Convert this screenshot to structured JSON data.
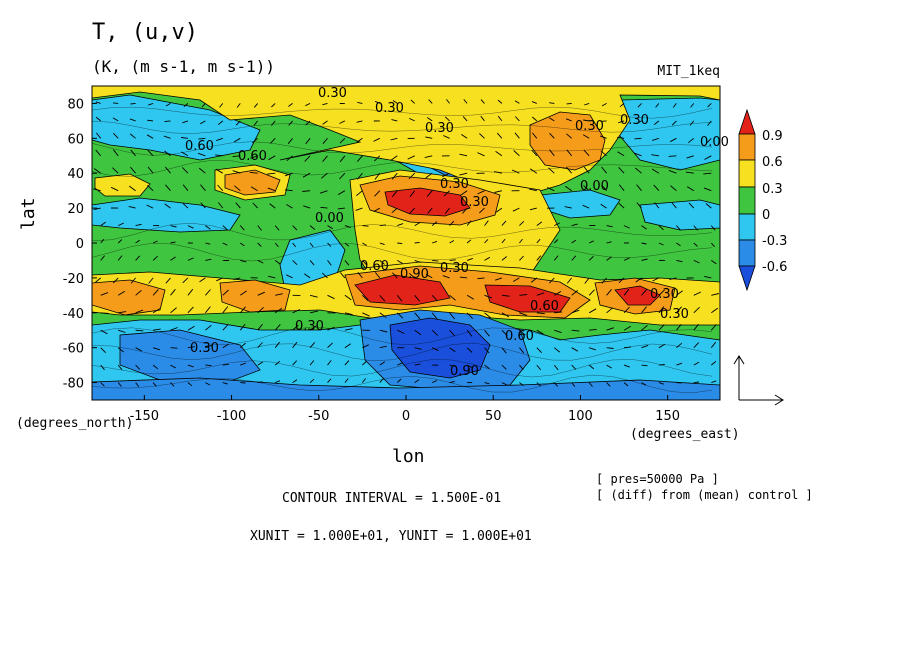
{
  "title": "T, (u,v)",
  "units": "(K, (m s-1, m s-1))",
  "dataset": "MIT_1keq",
  "x_axis": {
    "label": "lon",
    "unit_label": "(degrees_east)",
    "ticks": [
      "-150",
      "-100",
      "-50",
      "0",
      "50",
      "100",
      "150"
    ]
  },
  "y_axis": {
    "label": "lat",
    "unit_label": "(degrees_north)",
    "ticks": [
      "80",
      "60",
      "40",
      "20",
      "0",
      "-20",
      "-40",
      "-60",
      "-80"
    ]
  },
  "colorbar": {
    "labels": [
      "0.9",
      "0.6",
      "0.3",
      "0",
      "-0.3",
      "-0.6"
    ],
    "colors": {
      "c09": "#e2231a",
      "c06": "#f59c1a",
      "c03": "#f7e020",
      "c00": "#3fc53f",
      "cm03": "#2fc7f0",
      "cm06": "#2b8ce8",
      "cm09": "#1a4fdc"
    }
  },
  "contour_labels": [
    "0.30",
    "0.30",
    "0.30",
    "0.60",
    "0.00",
    "0.30",
    "0.60",
    "0.30",
    "0.00",
    "0.60",
    "0.60",
    "0.30",
    "0.30",
    "0.30",
    "0.00",
    "0.90",
    "0.30",
    "0.30",
    "0.60",
    "0.30",
    "0.30",
    "0.90"
  ],
  "annotations": {
    "pres": "[ pres=50000 Pa ]",
    "diff": "[ (diff) from (mean) control ]",
    "contour_interval": "CONTOUR INTERVAL = 1.500E-01",
    "units_vec": "XUNIT = 1.000E+01, YUNIT = 1.000E+01"
  },
  "chart_data": {
    "type": "heatmap",
    "title": "T, (u,v)",
    "xlabel": "lon",
    "ylabel": "lat",
    "xlim": [
      -180,
      180
    ],
    "ylim": [
      -90,
      90
    ],
    "levels": [
      -0.9,
      -0.6,
      -0.3,
      0,
      0.3,
      0.6,
      0.9
    ],
    "features": [
      {
        "lon": 10,
        "lat": 22,
        "value": 0.9
      },
      {
        "lon": 0,
        "lat": -30,
        "value": 0.9
      },
      {
        "lon": 70,
        "lat": -33,
        "value": 0.9
      },
      {
        "lon": 135,
        "lat": -33,
        "value": 0.6
      },
      {
        "lon": -165,
        "lat": -30,
        "value": 0.6
      },
      {
        "lon": -85,
        "lat": -30,
        "value": 0.6
      },
      {
        "lon": -85,
        "lat": 33,
        "value": 0.6
      },
      {
        "lon": 88,
        "lat": 55,
        "value": 0.6
      },
      {
        "lon": 30,
        "lat": -65,
        "value": -0.9
      },
      {
        "lon": 25,
        "lat": 55,
        "value": -0.6
      },
      {
        "lon": -150,
        "lat": 55,
        "value": -0.3
      },
      {
        "lon": -140,
        "lat": -65,
        "value": -0.6
      }
    ]
  }
}
